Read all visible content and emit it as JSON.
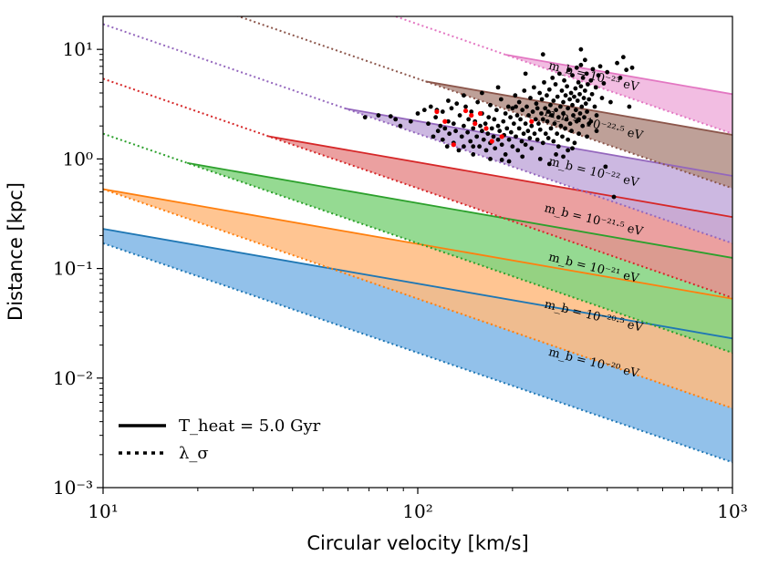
{
  "chart_data": {
    "type": "line",
    "title": "",
    "xlabel": "Circular velocity [km/s]",
    "ylabel": "Distance [kpc]",
    "xscale": "log",
    "yscale": "log",
    "xlim": [
      10,
      1000
    ],
    "ylim": [
      0.001,
      20
    ],
    "xticks": [
      {
        "value": 10,
        "label": "10¹"
      },
      {
        "value": 100,
        "label": "10²"
      },
      {
        "value": 1000,
        "label": "10³"
      }
    ],
    "yticks": [
      {
        "value": 0.001,
        "label": "10⁻³"
      },
      {
        "value": 0.01,
        "label": "10⁻²"
      },
      {
        "value": 0.1,
        "label": "10⁻¹"
      },
      {
        "value": 1,
        "label": "10⁰"
      },
      {
        "value": 10,
        "label": "10¹"
      }
    ],
    "line_slopes": {
      "T_heat": -0.5,
      "lambda_sigma": -1.0
    },
    "series": [
      {
        "name": "m_b = 10^-20 eV",
        "label": "m_b = 10⁻²⁰ eV",
        "color": "#1f77b4",
        "fill": "#7fb6e6",
        "heat_at_10": 0.23,
        "lambda_at_10": 0.17
      },
      {
        "name": "m_b = 10^-20.5 eV",
        "label": "m_b = 10⁻²⁰·⁵ eV",
        "color": "#ff7f0e",
        "fill": "#ffbb7f",
        "heat_at_10": 0.53,
        "lambda_at_10": 0.53
      },
      {
        "name": "m_b = 10^-21 eV",
        "label": "m_b = 10⁻²¹ eV",
        "color": "#2ca02c",
        "fill": "#82d47f",
        "heat_at_10": 1.25,
        "lambda_at_10": 1.7
      },
      {
        "name": "m_b = 10^-21.5 eV",
        "label": "m_b = 10⁻²¹·⁵ eV",
        "color": "#d62728",
        "fill": "#e88f8f",
        "heat_at_10": 2.95,
        "lambda_at_10": 5.4
      },
      {
        "name": "m_b = 10^-22 eV",
        "label": "m_b = 10⁻²² eV",
        "color": "#9467bd",
        "fill": "#c3acdc",
        "heat_at_10": 7.0,
        "lambda_at_10": 17
      },
      {
        "name": "m_b = 10^-22.5 eV",
        "label": "m_b = 10⁻²²·⁵ eV",
        "color": "#8c564b",
        "fill": "#b38f86",
        "heat_at_10": 16.6,
        "lambda_at_10": 54
      },
      {
        "name": "m_b = 10^-23 eV",
        "label": "m_b = 10⁻²³ eV",
        "color": "#e377c2",
        "fill": "#f0b1dd",
        "heat_at_10": 39.0,
        "lambda_at_10": 170
      }
    ],
    "scatter_black": [
      [
        68,
        2.4
      ],
      [
        75,
        2.5
      ],
      [
        82,
        2.45
      ],
      [
        85,
        2.3
      ],
      [
        88,
        2.0
      ],
      [
        95,
        2.2
      ],
      [
        100,
        2.6
      ],
      [
        105,
        2.8
      ],
      [
        108,
        2.1
      ],
      [
        110,
        3.0
      ],
      [
        112,
        1.6
      ],
      [
        114,
        2.4
      ],
      [
        116,
        1.8
      ],
      [
        118,
        2.0
      ],
      [
        120,
        1.5
      ],
      [
        120,
        2.7
      ],
      [
        122,
        1.9
      ],
      [
        124,
        1.3
      ],
      [
        125,
        2.2
      ],
      [
        126,
        1.7
      ],
      [
        128,
        2.9
      ],
      [
        130,
        1.4
      ],
      [
        130,
        2.1
      ],
      [
        132,
        1.8
      ],
      [
        133,
        3.2
      ],
      [
        135,
        1.2
      ],
      [
        136,
        2.5
      ],
      [
        138,
        1.6
      ],
      [
        140,
        2.0
      ],
      [
        140,
        1.3
      ],
      [
        142,
        3.0
      ],
      [
        144,
        1.75
      ],
      [
        145,
        2.3
      ],
      [
        147,
        1.45
      ],
      [
        148,
        2.7
      ],
      [
        150,
        1.9
      ],
      [
        150,
        1.1
      ],
      [
        152,
        2.2
      ],
      [
        154,
        1.6
      ],
      [
        155,
        3.3
      ],
      [
        157,
        1.3
      ],
      [
        158,
        2.0
      ],
      [
        160,
        1.8
      ],
      [
        160,
        2.6
      ],
      [
        162,
        1.5
      ],
      [
        164,
        2.1
      ],
      [
        165,
        1.2
      ],
      [
        167,
        1.7
      ],
      [
        168,
        2.4
      ],
      [
        170,
        1.4
      ],
      [
        170,
        3.1
      ],
      [
        172,
        1.9
      ],
      [
        174,
        1.6
      ],
      [
        175,
        2.3
      ],
      [
        176,
        1.25
      ],
      [
        178,
        2.8
      ],
      [
        180,
        1.5
      ],
      [
        180,
        2.0
      ],
      [
        182,
        1.8
      ],
      [
        184,
        3.5
      ],
      [
        185,
        1.35
      ],
      [
        187,
        2.2
      ],
      [
        188,
        1.65
      ],
      [
        190,
        2.6
      ],
      [
        190,
        1.1
      ],
      [
        192,
        1.9
      ],
      [
        194,
        3.0
      ],
      [
        195,
        1.5
      ],
      [
        197,
        2.4
      ],
      [
        198,
        1.75
      ],
      [
        200,
        1.3
      ],
      [
        200,
        2.9
      ],
      [
        202,
        2.1
      ],
      [
        204,
        3.8
      ],
      [
        205,
        1.6
      ],
      [
        207,
        2.5
      ],
      [
        208,
        1.2
      ],
      [
        210,
        1.9
      ],
      [
        210,
        3.3
      ],
      [
        212,
        2.3
      ],
      [
        214,
        1.45
      ],
      [
        215,
        2.8
      ],
      [
        217,
        1.7
      ],
      [
        218,
        4.2
      ],
      [
        220,
        2.1
      ],
      [
        220,
        1.35
      ],
      [
        222,
        3.0
      ],
      [
        224,
        1.8
      ],
      [
        225,
        2.5
      ],
      [
        227,
        1.55
      ],
      [
        228,
        3.6
      ],
      [
        230,
        2.0
      ],
      [
        230,
        1.25
      ],
      [
        232,
        2.7
      ],
      [
        234,
        4.5
      ],
      [
        235,
        1.7
      ],
      [
        237,
        2.3
      ],
      [
        238,
        3.2
      ],
      [
        240,
        1.5
      ],
      [
        240,
        2.9
      ],
      [
        242,
        2.1
      ],
      [
        244,
        4.0
      ],
      [
        245,
        1.85
      ],
      [
        247,
        2.6
      ],
      [
        248,
        3.5
      ],
      [
        250,
        1.4
      ],
      [
        250,
        2.3
      ],
      [
        252,
        5.0
      ],
      [
        254,
        2.9
      ],
      [
        255,
        1.7
      ],
      [
        257,
        3.8
      ],
      [
        258,
        2.2
      ],
      [
        260,
        1.55
      ],
      [
        260,
        2.7
      ],
      [
        262,
        4.3
      ],
      [
        264,
        3.1
      ],
      [
        265,
        1.9
      ],
      [
        267,
        2.5
      ],
      [
        268,
        5.5
      ],
      [
        270,
        1.45
      ],
      [
        270,
        3.4
      ],
      [
        272,
        2.1
      ],
      [
        274,
        4.8
      ],
      [
        275,
        2.8
      ],
      [
        277,
        1.7
      ],
      [
        278,
        3.7
      ],
      [
        280,
        2.4
      ],
      [
        280,
        1.3
      ],
      [
        282,
        6.0
      ],
      [
        284,
        3.0
      ],
      [
        285,
        2.0
      ],
      [
        287,
        4.2
      ],
      [
        288,
        1.6
      ],
      [
        290,
        3.3
      ],
      [
        290,
        2.6
      ],
      [
        292,
        5.2
      ],
      [
        294,
        1.9
      ],
      [
        295,
        3.8
      ],
      [
        297,
        2.3
      ],
      [
        298,
        4.6
      ],
      [
        300,
        1.5
      ],
      [
        300,
        2.9
      ],
      [
        302,
        6.5
      ],
      [
        304,
        3.5
      ],
      [
        305,
        2.1
      ],
      [
        307,
        4.0
      ],
      [
        308,
        1.8
      ],
      [
        310,
        3.1
      ],
      [
        310,
        5.8
      ],
      [
        312,
        2.5
      ],
      [
        314,
        3.7
      ],
      [
        315,
        1.4
      ],
      [
        317,
        4.4
      ],
      [
        318,
        2.8
      ],
      [
        320,
        6.8
      ],
      [
        320,
        2.2
      ],
      [
        322,
        3.4
      ],
      [
        324,
        5.0
      ],
      [
        325,
        1.7
      ],
      [
        327,
        3.9
      ],
      [
        328,
        2.6
      ],
      [
        330,
        7.2
      ],
      [
        330,
        4.6
      ],
      [
        332,
        3.0
      ],
      [
        334,
        2.0
      ],
      [
        335,
        5.5
      ],
      [
        337,
        3.6
      ],
      [
        338,
        2.4
      ],
      [
        340,
        8.0
      ],
      [
        340,
        4.2
      ],
      [
        342,
        3.2
      ],
      [
        344,
        6.0
      ],
      [
        345,
        2.7
      ],
      [
        347,
        4.8
      ],
      [
        350,
        3.5
      ],
      [
        350,
        2.1
      ],
      [
        355,
        5.2
      ],
      [
        358,
        3.9
      ],
      [
        360,
        6.6
      ],
      [
        365,
        3.0
      ],
      [
        368,
        4.5
      ],
      [
        370,
        2.5
      ],
      [
        375,
        5.8
      ],
      [
        380,
        7.0
      ],
      [
        385,
        3.6
      ],
      [
        390,
        4.9
      ],
      [
        395,
        0.85
      ],
      [
        400,
        6.2
      ],
      [
        410,
        3.3
      ],
      [
        420,
        0.45
      ],
      [
        430,
        7.5
      ],
      [
        440,
        5.5
      ],
      [
        450,
        8.5
      ],
      [
        460,
        6.5
      ],
      [
        470,
        3.0
      ],
      [
        480,
        6.8
      ],
      [
        330,
        10.0
      ],
      [
        250,
        9.0
      ],
      [
        220,
        6.0
      ],
      [
        180,
        4.5
      ],
      [
        160,
        4.0
      ],
      [
        140,
        3.8
      ],
      [
        125,
        3.4
      ],
      [
        115,
        2.8
      ],
      [
        205,
        3.0
      ],
      [
        262,
        0.9
      ],
      [
        275,
        1.1
      ],
      [
        300,
        1.2
      ],
      [
        310,
        1.25
      ],
      [
        325,
        2.3
      ],
      [
        345,
        1.6
      ],
      [
        355,
        2.2
      ],
      [
        370,
        1.8
      ],
      [
        290,
        1.05
      ],
      [
        245,
        1.0
      ],
      [
        215,
        1.05
      ],
      [
        195,
        0.95
      ],
      [
        185,
        0.98
      ],
      [
        170,
        1.0
      ],
      [
        150,
        1.3
      ]
    ],
    "scatter_red": [
      [
        115,
        2.7
      ],
      [
        122,
        2.2
      ],
      [
        130,
        1.35
      ],
      [
        142,
        2.75
      ],
      [
        148,
        2.5
      ],
      [
        152,
        2.1
      ],
      [
        158,
        2.6
      ],
      [
        165,
        1.9
      ],
      [
        172,
        1.45
      ],
      [
        185,
        1.6
      ],
      [
        230,
        2.2
      ]
    ]
  },
  "legend": {
    "heat_label": "T_heat = 5.0 Gyr",
    "lambda_label": "λ_σ"
  }
}
